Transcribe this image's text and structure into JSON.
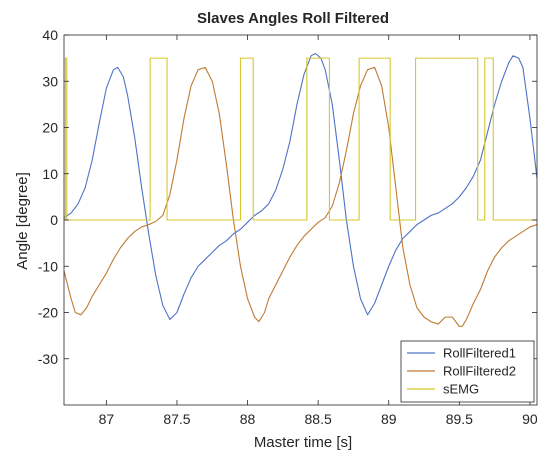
{
  "chart_data": {
    "type": "line",
    "title": "Slaves Angles Roll Filtered",
    "xlabel": "Master time [s]",
    "ylabel": "Angle [degree]",
    "xlim": [
      86.7,
      90.05
    ],
    "ylim": [
      -40,
      40
    ],
    "xticks": [
      87,
      87.5,
      88,
      88.5,
      89,
      89.5,
      90
    ],
    "xtick_labels": [
      "87",
      "87.5",
      "88",
      "88.5",
      "89",
      "89.5",
      "90"
    ],
    "yticks": [
      -30,
      -20,
      -10,
      0,
      10,
      20,
      30,
      40
    ],
    "ytick_labels": [
      "-30",
      "-20",
      "-10",
      "0",
      "10",
      "20",
      "30",
      "40"
    ],
    "grid": false,
    "legend_position": "bottom-right",
    "series": [
      {
        "name": "RollFiltered1",
        "color": "#4f73c8",
        "x": [
          86.7,
          86.75,
          86.8,
          86.85,
          86.9,
          86.95,
          87.0,
          87.05,
          87.08,
          87.12,
          87.15,
          87.2,
          87.25,
          87.3,
          87.35,
          87.4,
          87.45,
          87.5,
          87.55,
          87.6,
          87.65,
          87.7,
          87.75,
          87.8,
          87.85,
          87.9,
          87.95,
          88.0,
          88.05,
          88.1,
          88.15,
          88.2,
          88.25,
          88.3,
          88.35,
          88.4,
          88.45,
          88.48,
          88.52,
          88.55,
          88.6,
          88.65,
          88.7,
          88.75,
          88.8,
          88.85,
          88.9,
          88.95,
          89.0,
          89.05,
          89.1,
          89.15,
          89.2,
          89.25,
          89.3,
          89.35,
          89.4,
          89.45,
          89.5,
          89.55,
          89.6,
          89.65,
          89.7,
          89.75,
          89.8,
          89.85,
          89.88,
          89.92,
          89.95,
          90.0,
          90.05
        ],
        "values": [
          0.5,
          1.5,
          3.5,
          7,
          13,
          21,
          28.5,
          32.5,
          33,
          31,
          27,
          18,
          7,
          -3,
          -12,
          -18.5,
          -21.5,
          -20,
          -16,
          -12.5,
          -10,
          -8.5,
          -7,
          -5.5,
          -4.5,
          -3,
          -2,
          -0.5,
          1,
          2,
          3.5,
          6.5,
          11,
          17,
          25,
          31.5,
          35.5,
          36,
          35,
          32.5,
          25,
          13,
          0,
          -10,
          -17,
          -20.5,
          -18,
          -14,
          -10,
          -6.5,
          -4,
          -2.5,
          -1,
          0,
          1,
          1.5,
          2.5,
          3.5,
          5,
          7,
          9.5,
          13,
          19,
          25,
          30,
          34,
          35.5,
          35,
          33,
          22,
          9
        ]
      },
      {
        "name": "RollFiltered2",
        "color": "#bf7b34",
        "x": [
          86.7,
          86.75,
          86.78,
          86.82,
          86.86,
          86.9,
          86.95,
          87.0,
          87.05,
          87.1,
          87.15,
          87.2,
          87.25,
          87.3,
          87.35,
          87.4,
          87.45,
          87.5,
          87.55,
          87.6,
          87.65,
          87.7,
          87.75,
          87.8,
          87.85,
          87.9,
          87.95,
          88.0,
          88.05,
          88.08,
          88.12,
          88.15,
          88.2,
          88.25,
          88.3,
          88.35,
          88.4,
          88.45,
          88.5,
          88.55,
          88.6,
          88.65,
          88.7,
          88.75,
          88.8,
          88.85,
          88.9,
          88.95,
          89.0,
          89.05,
          89.1,
          89.15,
          89.2,
          89.25,
          89.3,
          89.35,
          89.4,
          89.45,
          89.5,
          89.52,
          89.55,
          89.6,
          89.65,
          89.7,
          89.75,
          89.8,
          89.85,
          89.9,
          89.95,
          90.0,
          90.05
        ],
        "values": [
          -11,
          -17,
          -20,
          -20.5,
          -19,
          -16.5,
          -14,
          -11.5,
          -8.5,
          -6,
          -4,
          -2.5,
          -1.5,
          -1,
          -0.3,
          1,
          5.5,
          13,
          22,
          29,
          32.5,
          33,
          30,
          23,
          12,
          0,
          -10,
          -17,
          -21,
          -22,
          -20,
          -17,
          -14,
          -11,
          -8,
          -5.5,
          -3.5,
          -2,
          -0.5,
          0.5,
          3,
          8,
          15,
          23,
          29,
          32.5,
          33,
          29,
          20,
          7,
          -6,
          -14,
          -19,
          -21,
          -22,
          -22.5,
          -21,
          -21,
          -23,
          -23,
          -21.5,
          -18,
          -15,
          -11,
          -8,
          -6,
          -4.5,
          -3.5,
          -2.5,
          -1.5,
          -1
        ]
      },
      {
        "name": "sEMG",
        "color": "#d6c82a",
        "x": [
          86.7,
          86.71,
          86.71,
          86.72,
          86.72,
          87.31,
          87.31,
          87.43,
          87.43,
          87.95,
          87.95,
          88.04,
          88.04,
          88.42,
          88.42,
          88.58,
          88.58,
          88.79,
          88.79,
          89.01,
          89.01,
          89.19,
          89.19,
          89.63,
          89.63,
          89.68,
          89.68,
          89.74,
          89.74,
          90.05
        ],
        "values": [
          0,
          0,
          35,
          35,
          0,
          0,
          35,
          35,
          0,
          0,
          35,
          35,
          0,
          0,
          35,
          35,
          0,
          0,
          35,
          35,
          0,
          0,
          35,
          35,
          0,
          0,
          35,
          35,
          0,
          0
        ]
      }
    ]
  }
}
